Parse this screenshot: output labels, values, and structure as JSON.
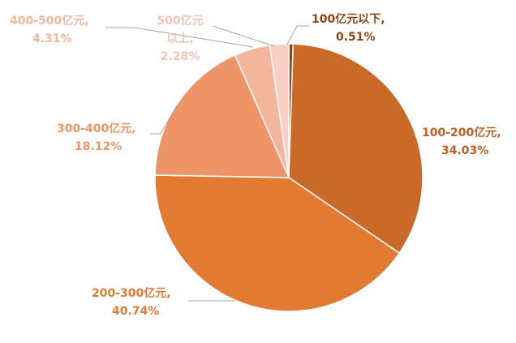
{
  "chart_data": {
    "type": "pie",
    "title": "",
    "slices": [
      {
        "name": "100亿元以下",
        "label": "100亿元以下,",
        "pct": "0.51%",
        "value": 0.51,
        "color": "#8B4513",
        "label_color": "#8B4513"
      },
      {
        "name": "100-200亿元",
        "label": "100-200亿元,",
        "pct": "34.03%",
        "value": 34.03,
        "color": "#C96A28",
        "label_color": "#C05E1F"
      },
      {
        "name": "200-300亿元",
        "label": "200-300亿元,",
        "pct": "40.74%",
        "value": 40.74,
        "color": "#E27A32",
        "label_color": "#E27A32"
      },
      {
        "name": "300-400亿元",
        "label": "300-400亿元,",
        "pct": "18.12%",
        "value": 18.12,
        "color": "#EE9468",
        "label_color": "#EE9468"
      },
      {
        "name": "400-500亿元",
        "label": "400-500亿元,",
        "pct": "4.31%",
        "value": 4.31,
        "color": "#F3B59C",
        "label_color": "#F3B59C"
      },
      {
        "name": "500亿元以上",
        "label_lines": [
          "500亿元",
          "以上,"
        ],
        "pct": "2.28%",
        "value": 2.28,
        "color": "#F7CFC4",
        "label_color": "#F3C3B4"
      }
    ]
  }
}
